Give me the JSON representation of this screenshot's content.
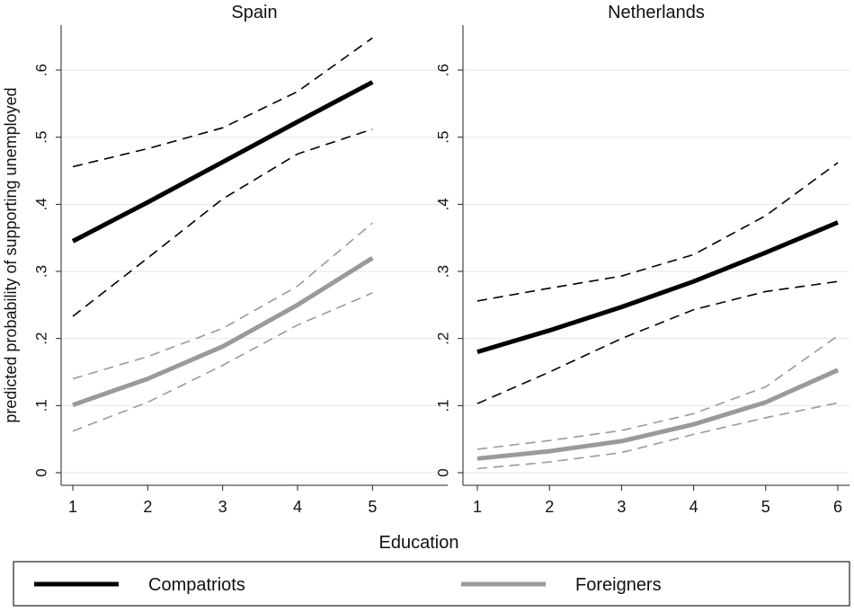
{
  "chart_data": {
    "type": "line",
    "ylabel": "predicted probability of supporting unemployed",
    "xlabel": "Education",
    "y_ticks": [
      "0",
      ".1",
      ".2",
      ".3",
      ".4",
      ".5",
      ".6"
    ],
    "ylim": [
      0,
      0.65
    ],
    "grid": true,
    "legend_position": "bottom",
    "legend": [
      {
        "name": "Compatriots",
        "color": "#000000"
      },
      {
        "name": "Foreigners",
        "color": "#9a9a9a"
      }
    ],
    "panels": [
      {
        "title": "Spain",
        "x": [
          1,
          2,
          3,
          4,
          5
        ],
        "x_ticks": [
          "1",
          "2",
          "3",
          "4",
          "5"
        ],
        "xlim": [
          1,
          5.8
        ],
        "series": [
          {
            "name": "Compatriots",
            "values": [
              0.345,
              0.403,
              0.463,
              0.523,
              0.582
            ],
            "lower": [
              0.233,
              0.32,
              0.408,
              0.475,
              0.512
            ],
            "upper": [
              0.456,
              0.483,
              0.514,
              0.568,
              0.648
            ]
          },
          {
            "name": "Foreigners",
            "values": [
              0.101,
              0.14,
              0.188,
              0.25,
              0.32
            ],
            "lower": [
              0.062,
              0.105,
              0.16,
              0.22,
              0.268
            ],
            "upper": [
              0.14,
              0.173,
              0.215,
              0.278,
              0.372
            ]
          }
        ]
      },
      {
        "title": "Netherlands",
        "x": [
          1,
          2,
          3,
          4,
          5,
          6
        ],
        "x_ticks": [
          "1",
          "2",
          "3",
          "4",
          "5",
          "6"
        ],
        "xlim": [
          1,
          6
        ],
        "series": [
          {
            "name": "Compatriots",
            "values": [
              0.18,
              0.212,
              0.247,
              0.285,
              0.328,
              0.373
            ],
            "lower": [
              0.103,
              0.15,
              0.2,
              0.243,
              0.27,
              0.285
            ],
            "upper": [
              0.256,
              0.275,
              0.293,
              0.325,
              0.383,
              0.462
            ]
          },
          {
            "name": "Foreigners",
            "values": [
              0.021,
              0.032,
              0.047,
              0.072,
              0.105,
              0.153
            ],
            "lower": [
              0.006,
              0.016,
              0.03,
              0.057,
              0.082,
              0.104
            ],
            "upper": [
              0.035,
              0.048,
              0.063,
              0.088,
              0.128,
              0.204
            ]
          }
        ]
      }
    ]
  }
}
